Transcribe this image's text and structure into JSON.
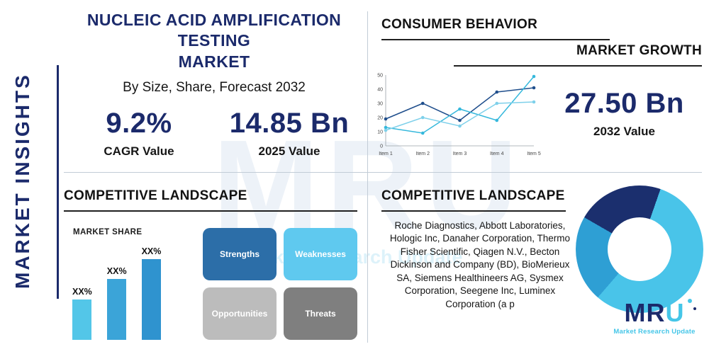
{
  "colors": {
    "navy": "#1b2a6b",
    "cyan": "#45c6e8",
    "divider": "#c2ccd6"
  },
  "watermark": {
    "text": "MRU",
    "tagline": "Market Research Update"
  },
  "sidebar": {
    "vertical_label": "MARKET INSIGHTS"
  },
  "header": {
    "title_line1": "NUCLEIC ACID AMPLIFICATION TESTING",
    "title_line2": "MARKET",
    "subtitle": "By Size, Share, Forecast 2032"
  },
  "stats": {
    "cagr": {
      "value": "9.2%",
      "label": "CAGR Value"
    },
    "value_2025": {
      "value": "14.85 Bn",
      "label": "2025 Value"
    },
    "value_2032": {
      "value": "27.50 Bn",
      "label": "2032 Value"
    }
  },
  "sections": {
    "consumer_behavior": "CONSUMER BEHAVIOR",
    "market_growth": "MARKET GROWTH",
    "competitive_landscape_left": "COMPETITIVE LANDSCAPE",
    "competitive_landscape_right": "COMPETITIVE LANDSCAPE",
    "market_share": "MARKET SHARE"
  },
  "swot": [
    {
      "label": "Strengths",
      "color": "#2c6ea8"
    },
    {
      "label": "Weaknesses",
      "color": "#5fc9ef"
    },
    {
      "label": "Opportunities",
      "color": "#bcbcbc"
    },
    {
      "label": "Threats",
      "color": "#7f7f7f"
    }
  ],
  "companies_text": "Roche Diagnostics, Abbott Laboratories, Hologic Inc, Danaher Corporation, Thermo Fisher Scientific, Qiagen N.V., Becton Dickinson and Company (BD), BioMerieux SA, Siemens Healthineers AG, Sysmex Corporation, Seegene Inc, Luminex Corporation (a p",
  "logo": {
    "letters": [
      "M",
      "R",
      "U"
    ],
    "tagline": "Market Research Update"
  },
  "chart_data": [
    {
      "type": "line",
      "title": "MARKET GROWTH",
      "x": [
        "Item 1",
        "Item 2",
        "Item 3",
        "Item 4",
        "Item 5"
      ],
      "series": [
        {
          "name": "navy-series",
          "color": "#1f4e8c",
          "values": [
            19,
            30,
            18,
            38,
            41
          ]
        },
        {
          "name": "cyan-series",
          "color": "#35b8dc",
          "values": [
            13,
            9,
            26,
            18,
            49
          ]
        },
        {
          "name": "light-blue-series",
          "color": "#7ed0ea",
          "values": [
            11,
            20,
            14,
            30,
            31
          ]
        }
      ],
      "ylim": [
        0,
        50
      ],
      "yticks": [
        0,
        10,
        20,
        30,
        40,
        50
      ],
      "legend": false,
      "grid": false
    },
    {
      "type": "bar",
      "title": "MARKET SHARE",
      "categories": [
        "XX%",
        "XX%",
        "XX%"
      ],
      "values": [
        30,
        45,
        60
      ],
      "colors": [
        "#53c6e8",
        "#3ba4d8",
        "#2f93cf"
      ],
      "ylim": [
        0,
        75
      ]
    },
    {
      "type": "pie",
      "subtype": "donut",
      "start_angle_deg": 300,
      "slices": [
        {
          "label": "segment-1",
          "value": 22,
          "color": "#1b2f6e"
        },
        {
          "label": "segment-2",
          "value": 56,
          "color": "#49c4e9"
        },
        {
          "label": "segment-3",
          "value": 22,
          "color": "#2e9fd4"
        }
      ]
    }
  ]
}
